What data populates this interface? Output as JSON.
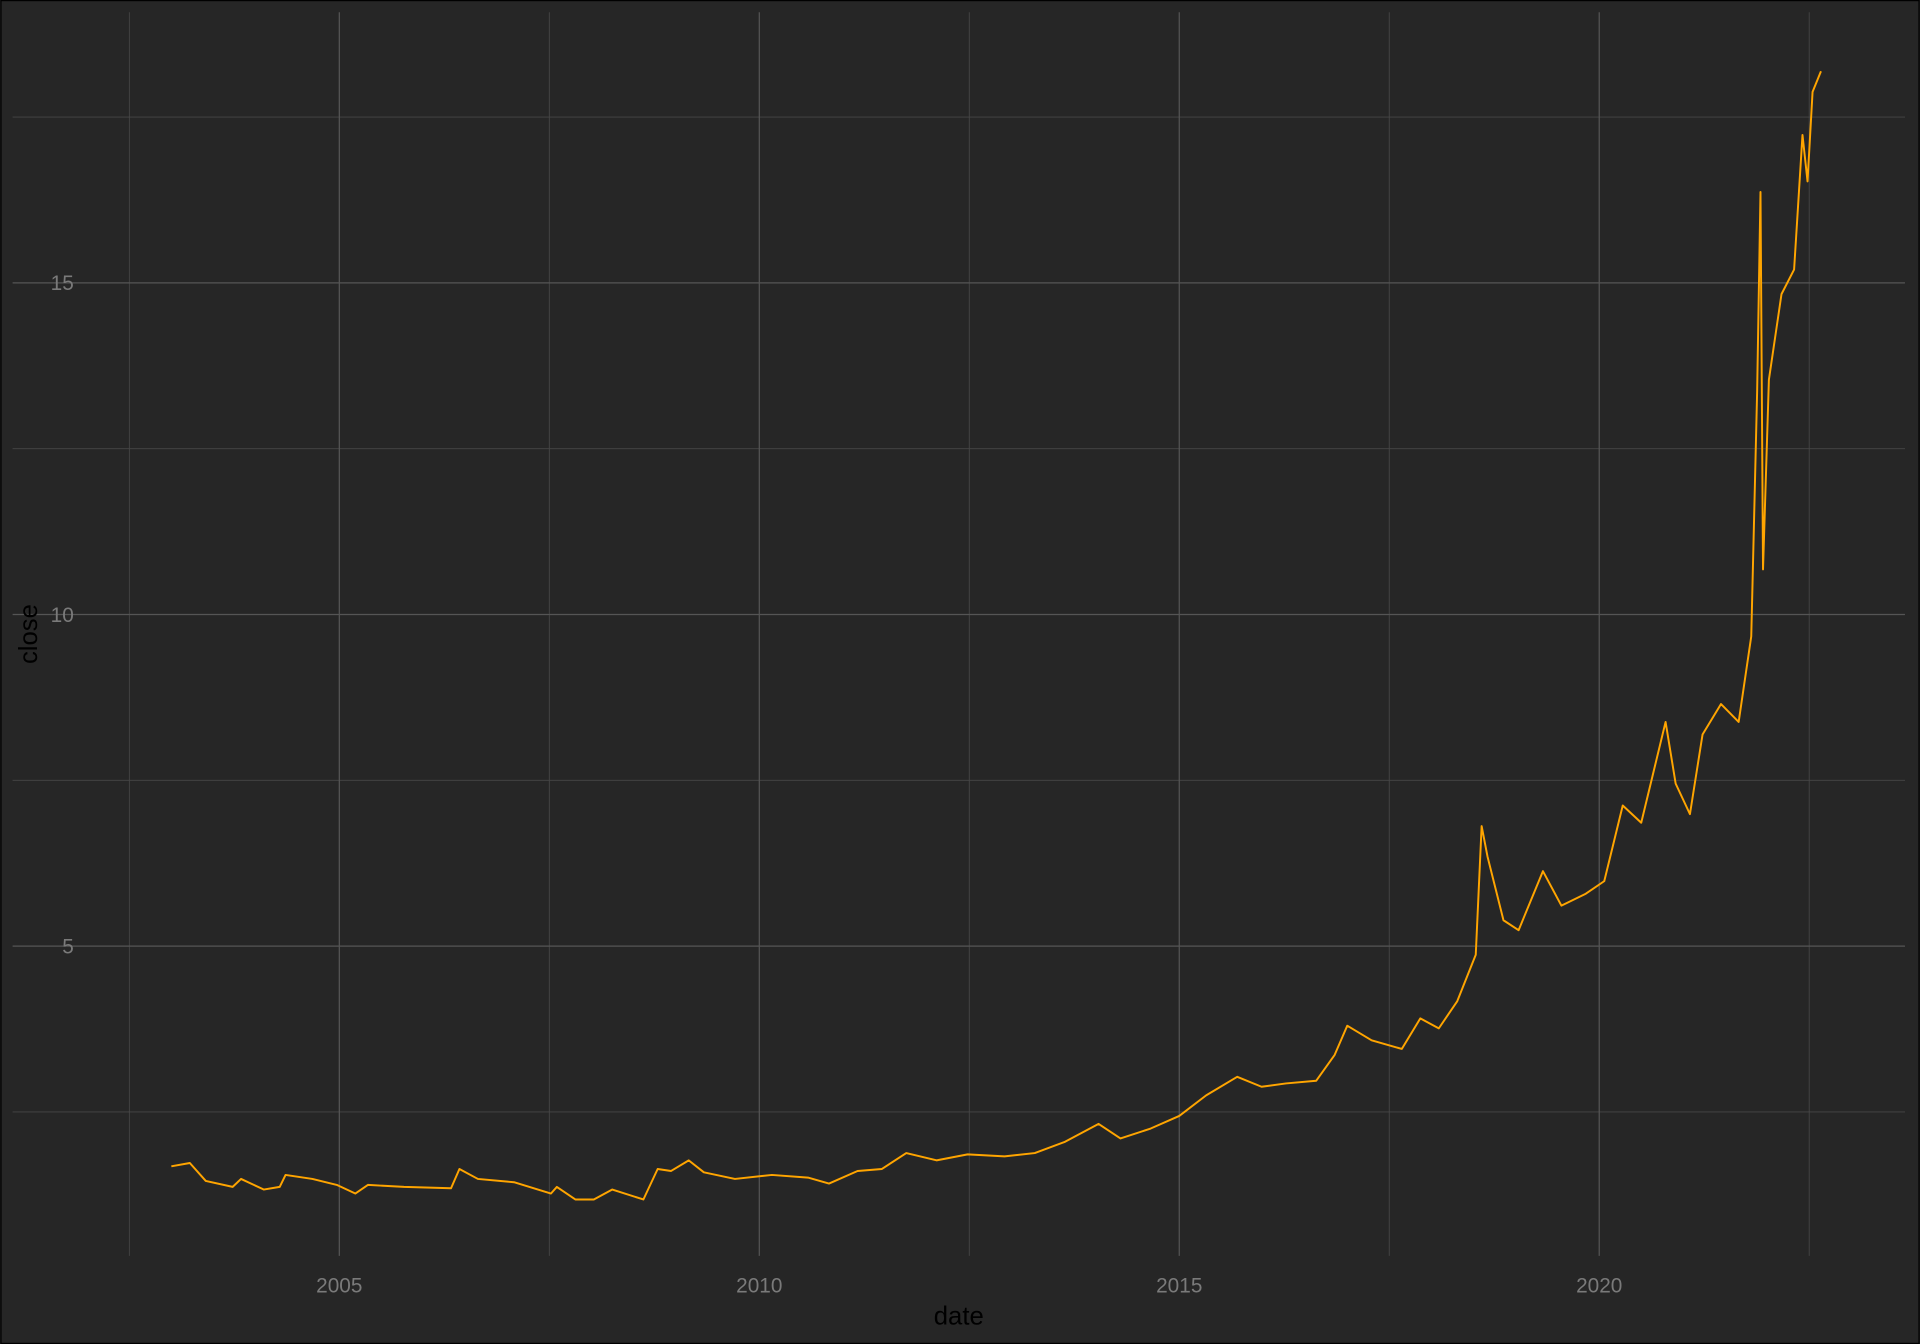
{
  "chart_data": {
    "type": "line",
    "x_label": "date",
    "y_label": "close",
    "x": [
      2003.0,
      2003.22,
      2003.41,
      2003.73,
      2003.83,
      2004.1,
      2004.29,
      2004.36,
      2004.68,
      2004.97,
      2005.19,
      2005.34,
      2005.77,
      2006.33,
      2006.43,
      2006.65,
      2007.08,
      2007.52,
      2007.59,
      2007.81,
      2008.03,
      2008.25,
      2008.62,
      2008.79,
      2008.95,
      2009.16,
      2009.34,
      2009.71,
      2010.15,
      2010.58,
      2010.83,
      2011.17,
      2011.46,
      2011.75,
      2012.11,
      2012.48,
      2012.92,
      2013.28,
      2013.64,
      2014.04,
      2014.3,
      2014.66,
      2015.0,
      2015.32,
      2015.69,
      2015.98,
      2016.27,
      2016.63,
      2016.85,
      2017.0,
      2017.29,
      2017.65,
      2017.87,
      2018.09,
      2018.31,
      2018.53,
      2018.6,
      2018.67,
      2018.86,
      2019.04,
      2019.33,
      2019.55,
      2019.84,
      2020.06,
      2020.28,
      2020.5,
      2020.79,
      2020.91,
      2021.08,
      2021.23,
      2021.45,
      2021.66,
      2021.81,
      2021.88,
      2021.92,
      2021.95,
      2022.02,
      2022.17,
      2022.32,
      2022.42,
      2022.48,
      2022.54,
      2022.64
    ],
    "series": [
      {
        "color": "#ffa500",
        "values": [
          1.68,
          1.73,
          1.46,
          1.37,
          1.49,
          1.33,
          1.37,
          1.55,
          1.49,
          1.4,
          1.27,
          1.4,
          1.37,
          1.35,
          1.64,
          1.49,
          1.44,
          1.27,
          1.37,
          1.18,
          1.18,
          1.33,
          1.18,
          1.64,
          1.61,
          1.77,
          1.59,
          1.49,
          1.55,
          1.51,
          1.42,
          1.61,
          1.64,
          1.88,
          1.77,
          1.86,
          1.83,
          1.88,
          2.05,
          2.32,
          2.1,
          2.25,
          2.44,
          2.75,
          3.03,
          2.88,
          2.93,
          2.97,
          3.36,
          3.8,
          3.58,
          3.45,
          3.91,
          3.76,
          4.17,
          4.87,
          6.81,
          6.35,
          5.39,
          5.24,
          6.13,
          5.61,
          5.79,
          5.98,
          7.12,
          6.86,
          8.38,
          7.45,
          6.99,
          8.19,
          8.65,
          8.38,
          9.67,
          13.36,
          16.37,
          10.68,
          13.54,
          14.83,
          15.2,
          17.23,
          16.53,
          17.88,
          18.19
        ]
      }
    ],
    "xlim": [
      2001.11,
      2023.64
    ],
    "ylim": [
      0.33,
      19.08
    ],
    "xticks": [
      2005,
      2010,
      2015,
      2020
    ],
    "yticks": [
      5,
      10,
      15
    ],
    "x_minor_grid": [
      2002.5,
      2007.5,
      2012.5,
      2017.5,
      2022.5
    ],
    "y_minor_grid": [
      2.5,
      7.5,
      12.5,
      17.5
    ],
    "grid": true
  }
}
